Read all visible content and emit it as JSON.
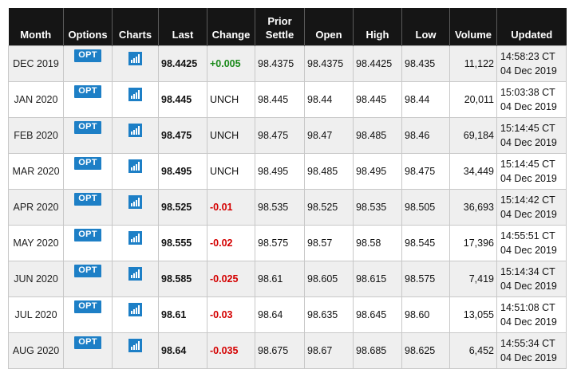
{
  "headers": {
    "month": "Month",
    "options": "Options",
    "charts": "Charts",
    "last": "Last",
    "change": "Change",
    "prior_settle_1": "Prior",
    "prior_settle_2": "Settle",
    "open": "Open",
    "high": "High",
    "low": "Low",
    "volume": "Volume",
    "updated": "Updated"
  },
  "opt_label": "OPT",
  "colors": {
    "header_bg": "#151515",
    "badge_blue": "#1d7fc6",
    "positive": "#1a8a1a",
    "negative": "#d40000"
  },
  "rows": [
    {
      "month": "DEC 2019",
      "last": "98.4425",
      "change": "+0.005",
      "change_dir": "pos",
      "prior_settle": "98.4375",
      "open": "98.4375",
      "high": "98.4425",
      "low": "98.435",
      "volume": "11,122",
      "updated_time": "14:58:23 CT",
      "updated_date": "04 Dec 2019"
    },
    {
      "month": "JAN 2020",
      "last": "98.445",
      "change": "UNCH",
      "change_dir": "unch",
      "prior_settle": "98.445",
      "open": "98.44",
      "high": "98.445",
      "low": "98.44",
      "volume": "20,011",
      "updated_time": "15:03:38 CT",
      "updated_date": "04 Dec 2019"
    },
    {
      "month": "FEB 2020",
      "last": "98.475",
      "change": "UNCH",
      "change_dir": "unch",
      "prior_settle": "98.475",
      "open": "98.47",
      "high": "98.485",
      "low": "98.46",
      "volume": "69,184",
      "updated_time": "15:14:45 CT",
      "updated_date": "04 Dec 2019"
    },
    {
      "month": "MAR 2020",
      "last": "98.495",
      "change": "UNCH",
      "change_dir": "unch",
      "prior_settle": "98.495",
      "open": "98.485",
      "high": "98.495",
      "low": "98.475",
      "volume": "34,449",
      "updated_time": "15:14:45 CT",
      "updated_date": "04 Dec 2019"
    },
    {
      "month": "APR 2020",
      "last": "98.525",
      "change": "-0.01",
      "change_dir": "neg",
      "prior_settle": "98.535",
      "open": "98.525",
      "high": "98.535",
      "low": "98.505",
      "volume": "36,693",
      "updated_time": "15:14:42 CT",
      "updated_date": "04 Dec 2019"
    },
    {
      "month": "MAY 2020",
      "last": "98.555",
      "change": "-0.02",
      "change_dir": "neg",
      "prior_settle": "98.575",
      "open": "98.57",
      "high": "98.58",
      "low": "98.545",
      "volume": "17,396",
      "updated_time": "14:55:51 CT",
      "updated_date": "04 Dec 2019"
    },
    {
      "month": "JUN 2020",
      "last": "98.585",
      "change": "-0.025",
      "change_dir": "neg",
      "prior_settle": "98.61",
      "open": "98.605",
      "high": "98.615",
      "low": "98.575",
      "volume": "7,419",
      "updated_time": "15:14:34 CT",
      "updated_date": "04 Dec 2019"
    },
    {
      "month": "JUL 2020",
      "last": "98.61",
      "change": "-0.03",
      "change_dir": "neg",
      "prior_settle": "98.64",
      "open": "98.635",
      "high": "98.645",
      "low": "98.60",
      "volume": "13,055",
      "updated_time": "14:51:08 CT",
      "updated_date": "04 Dec 2019"
    },
    {
      "month": "AUG 2020",
      "last": "98.64",
      "change": "-0.035",
      "change_dir": "neg",
      "prior_settle": "98.675",
      "open": "98.67",
      "high": "98.685",
      "low": "98.625",
      "volume": "6,452",
      "updated_time": "14:55:34 CT",
      "updated_date": "04 Dec 2019"
    }
  ]
}
